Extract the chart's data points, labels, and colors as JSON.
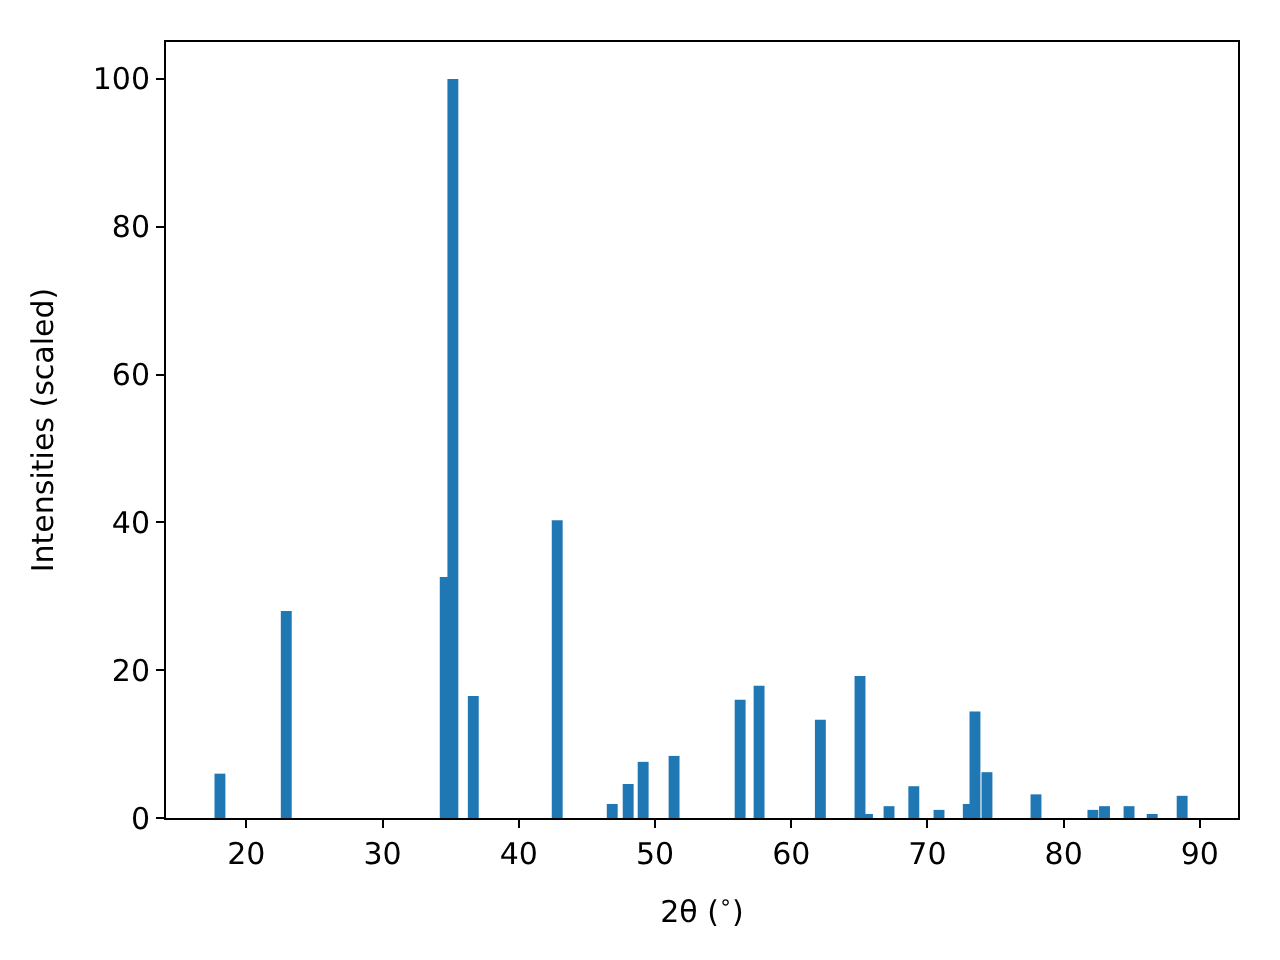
{
  "chart_data": {
    "type": "bar",
    "xlabel": "2θ ($^{∘}$)",
    "ylabel": "Intensities (scaled)",
    "x": [
      18.06,
      22.93,
      34.6,
      35.16,
      36.66,
      42.82,
      46.86,
      48.03,
      49.13,
      51.4,
      56.25,
      57.64,
      62.14,
      65.05,
      65.6,
      67.18,
      69.0,
      70.85,
      73.0,
      73.49,
      74.37,
      77.97,
      82.15,
      83.0,
      84.8,
      86.5,
      88.7
    ],
    "values": [
      6.0,
      28.0,
      32.6,
      100,
      16.5,
      40.3,
      1.9,
      4.6,
      7.6,
      8.4,
      16.0,
      17.9,
      13.3,
      19.2,
      0.5,
      1.6,
      4.3,
      1.1,
      1.9,
      14.4,
      6.2,
      3.2,
      1.1,
      1.6,
      1.6,
      0.5,
      3.0
    ],
    "color": "#1f77b4",
    "xlim": [
      14.1,
      92.8
    ],
    "xticks": [
      20,
      30,
      40,
      50,
      60,
      70,
      80,
      90
    ],
    "ylim": [
      0,
      105
    ],
    "yticks": [
      0,
      20,
      40,
      60,
      80,
      100
    ],
    "legend": false
  }
}
